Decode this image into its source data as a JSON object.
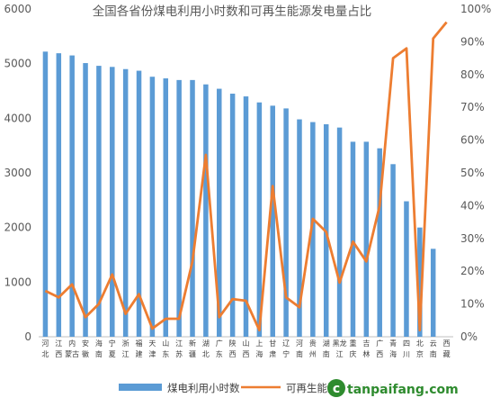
{
  "chart_data": {
    "type": "bar+line",
    "title": "全国各省份煤电利用小时数和可再生能源发电量占比",
    "categories": [
      [
        "河",
        "北"
      ],
      [
        "江",
        "西"
      ],
      [
        "内",
        "蒙古"
      ],
      [
        "安",
        "徽"
      ],
      [
        "海",
        "南"
      ],
      [
        "宁",
        "夏"
      ],
      [
        "浙",
        "江"
      ],
      [
        "福",
        "建"
      ],
      [
        "天",
        "津"
      ],
      [
        "山",
        "东"
      ],
      [
        "江",
        "苏"
      ],
      [
        "新",
        "疆"
      ],
      [
        "湖",
        "北"
      ],
      [
        "广",
        "东"
      ],
      [
        "陕",
        "西"
      ],
      [
        "山",
        "西"
      ],
      [
        "上",
        "海"
      ],
      [
        "甘",
        "肃"
      ],
      [
        "辽",
        "宁"
      ],
      [
        "河",
        "南"
      ],
      [
        "贵",
        "州"
      ],
      [
        "湖",
        "南"
      ],
      [
        "黑龙",
        "江"
      ],
      [
        "重",
        "庆"
      ],
      [
        "吉",
        "林"
      ],
      [
        "广",
        "西"
      ],
      [
        "青",
        "海"
      ],
      [
        "四",
        "川"
      ],
      [
        "北",
        "京"
      ],
      [
        "云",
        "南"
      ],
      [
        "西",
        "藏"
      ]
    ],
    "series": [
      {
        "name": "煤电利用小时数",
        "type": "bar",
        "axis": "left",
        "color": "#5b9bd5",
        "values": [
          5220,
          5190,
          5150,
          5010,
          4960,
          4940,
          4900,
          4870,
          4760,
          4730,
          4700,
          4700,
          4620,
          4540,
          4450,
          4400,
          4290,
          4230,
          4180,
          3980,
          3930,
          3890,
          3830,
          3570,
          3570,
          3450,
          3160,
          2480,
          2000,
          1610,
          null
        ]
      },
      {
        "name": "可再生能源发电量占比",
        "type": "line",
        "axis": "right",
        "color": "#ed7d31",
        "values": [
          0.14,
          0.12,
          0.16,
          0.06,
          0.1,
          0.19,
          0.07,
          0.13,
          0.025,
          0.055,
          0.055,
          0.23,
          0.555,
          0.06,
          0.115,
          0.11,
          0.02,
          0.46,
          0.12,
          0.09,
          0.36,
          0.32,
          0.165,
          0.29,
          0.23,
          0.4,
          0.85,
          0.88,
          0.02,
          0.91,
          0.96
        ]
      }
    ],
    "y_left": {
      "min": 0,
      "max": 6000,
      "ticks": [
        "0",
        "1000",
        "2000",
        "3000",
        "4000",
        "5000",
        "6000"
      ]
    },
    "y_right": {
      "min": 0,
      "max": 1,
      "ticks": [
        "0%",
        "10%",
        "20%",
        "30%",
        "40%",
        "50%",
        "60%",
        "70%",
        "80%",
        "90%",
        "100%"
      ]
    },
    "grid": false,
    "legend_position": "bottom"
  },
  "watermark": {
    "logo_letter": "c",
    "text": "tanpaifang.com",
    "text_color": "#2e8b2e",
    "logo_color": "#2e8b2e"
  }
}
